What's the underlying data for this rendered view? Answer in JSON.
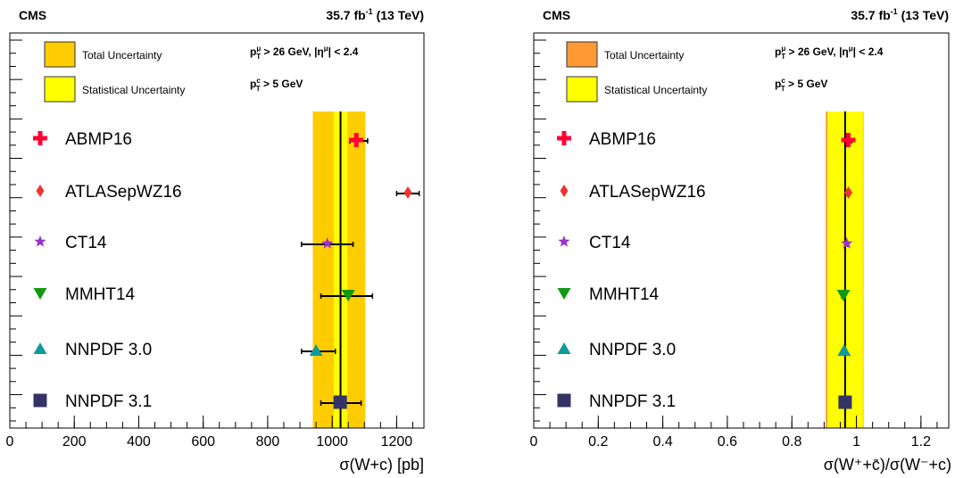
{
  "chart_data": [
    {
      "type": "scatter",
      "experiment": "CMS",
      "luminosity": "35.7 fb",
      "luminosity_exp": "-1",
      "energy": "(13 TeV)",
      "cuts": {
        "muon": {
          "prefix": "p",
          "sub": "T",
          "sup": "μ",
          "text": " > 26 GeV, |η",
          "sup2": "μ",
          "text2": "| < 2.4"
        },
        "charm": {
          "prefix": "p",
          "sub": "T",
          "sup": "c",
          "text": " > 5 GeV"
        }
      },
      "legend": {
        "total": "Total Uncertainty",
        "stat": "Statistical Uncertainty"
      },
      "xlabel": "σ(W+c) [pb]",
      "xlim": [
        0,
        1300
      ],
      "xticks": [
        0,
        200,
        400,
        600,
        800,
        1000,
        1200
      ],
      "xticklabels": [
        "0",
        "200",
        "400",
        "600",
        "800",
        "1000",
        "1200"
      ],
      "measurement": {
        "value": 1026,
        "stat": [
          1005,
          1047
        ],
        "total": [
          940,
          1103
        ]
      },
      "colors": {
        "total": "#ffcc00",
        "stat": "#ffff00"
      },
      "series": [
        {
          "name": "ABMP16",
          "value": 1075,
          "err": [
            1055,
            1110
          ],
          "marker": "cross",
          "color": "#ff0033"
        },
        {
          "name": "ATLASepWZ16",
          "value": 1235,
          "err": [
            1200,
            1270
          ],
          "marker": "diamond",
          "color": "#ee3333"
        },
        {
          "name": "CT14",
          "value": 985,
          "err": [
            905,
            1065
          ],
          "marker": "star",
          "color": "#9933cc"
        },
        {
          "name": "MMHT14",
          "value": 1050,
          "err": [
            965,
            1125
          ],
          "marker": "triangle-down",
          "color": "#119911"
        },
        {
          "name": "NNPDF 3.0",
          "value": 950,
          "err": [
            905,
            1010
          ],
          "marker": "triangle-up",
          "color": "#119999"
        },
        {
          "name": "NNPDF 3.1",
          "value": 1025,
          "err": [
            965,
            1090
          ],
          "marker": "square",
          "color": "#333366"
        }
      ]
    },
    {
      "type": "scatter",
      "experiment": "CMS",
      "luminosity": "35.7 fb",
      "luminosity_exp": "-1",
      "energy": "(13 TeV)",
      "cuts": {
        "muon": {
          "prefix": "p",
          "sub": "T",
          "sup": "μ",
          "text": " > 26 GeV, |η",
          "sup2": "μ",
          "text2": "| < 2.4"
        },
        "charm": {
          "prefix": "p",
          "sub": "T",
          "sup": "c",
          "text": " > 5 GeV"
        }
      },
      "legend": {
        "total": "Total Uncertainty",
        "stat": "Statistical Uncertainty"
      },
      "xlabel": "σ(W⁺+c̄)/σ(W⁻+c)",
      "xlim": [
        0,
        1.3
      ],
      "xticks": [
        0,
        0.2,
        0.4,
        0.6,
        0.8,
        1.0,
        1.2
      ],
      "xticklabels": [
        "0",
        "0.2",
        "0.4",
        "0.6",
        "0.8",
        "1",
        "1.2"
      ],
      "measurement": {
        "value": 0.965,
        "stat": [
          0.91,
          1.02
        ],
        "total": [
          0.905,
          1.022
        ]
      },
      "colors": {
        "total": "#ff9933",
        "stat": "#ffff00"
      },
      "series": [
        {
          "name": "ABMP16",
          "value": 0.975,
          "err": [
            0.965,
            0.985
          ],
          "marker": "cross",
          "color": "#ff0033"
        },
        {
          "name": "ATLASepWZ16",
          "value": 0.975,
          "err": [
            0.972,
            0.978
          ],
          "marker": "diamond",
          "color": "#ee3333"
        },
        {
          "name": "CT14",
          "value": 0.97,
          "err": [
            0.967,
            0.973
          ],
          "marker": "star",
          "color": "#9933cc"
        },
        {
          "name": "MMHT14",
          "value": 0.96,
          "err": [
            0.955,
            0.965
          ],
          "marker": "triangle-down",
          "color": "#119911"
        },
        {
          "name": "NNPDF 3.0",
          "value": 0.962,
          "err": [
            0.955,
            0.969
          ],
          "marker": "triangle-up",
          "color": "#119999"
        },
        {
          "name": "NNPDF 3.1",
          "value": 0.965,
          "err": [
            0.958,
            0.972
          ],
          "marker": "square",
          "color": "#333366"
        }
      ]
    }
  ]
}
